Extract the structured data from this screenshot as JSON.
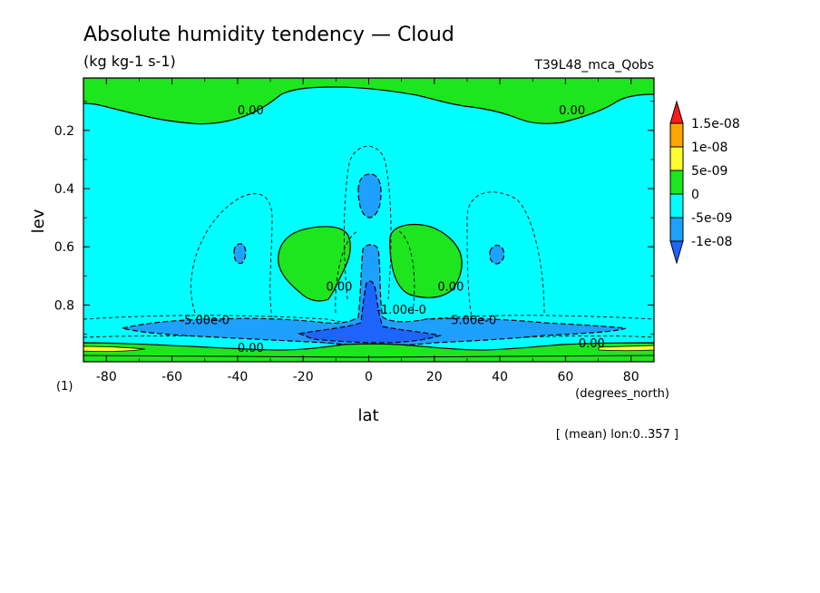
{
  "chart_data": {
    "type": "contour",
    "title": "Absolute humidity tendency — Cloud",
    "units": "(kg kg-1 s-1)",
    "run_label": "T39L48_mca_Qobs",
    "xlabel": "lat",
    "x_unit": "(degrees_north)",
    "ylabel": "lev",
    "y_unit": "(1)",
    "footer": "[ (mean) lon:0..357 ]",
    "xlim": [
      -87,
      87
    ],
    "ylim": [
      0.995,
      0.02
    ],
    "x_ticks": [
      -80,
      -60,
      -40,
      -20,
      0,
      20,
      40,
      60,
      80
    ],
    "y_ticks": [
      0.2,
      0.4,
      0.6,
      0.8
    ],
    "contour_labels": [
      {
        "text": "0.00",
        "lat": -36,
        "lev": 0.145
      },
      {
        "text": "0.00",
        "lat": 62,
        "lev": 0.145
      },
      {
        "text": "0.00",
        "lat": -9,
        "lev": 0.75
      },
      {
        "text": "0.00",
        "lat": 25,
        "lev": 0.75
      },
      {
        "text": "-1.00e-0",
        "lat": 10,
        "lev": 0.83
      },
      {
        "text": "-5.00e-0",
        "lat": -50,
        "lev": 0.865
      },
      {
        "text": "5.00e-0",
        "lat": 32,
        "lev": 0.865
      },
      {
        "text": "0.00",
        "lat": -36,
        "lev": 0.96
      },
      {
        "text": "0.00",
        "lat": 68,
        "lev": 0.945
      }
    ],
    "colorbar": {
      "labels": [
        "1.5e-08",
        "1e-08",
        "5e-09",
        "0",
        "-5e-09",
        "-1e-08"
      ],
      "colors": [
        "#ff1a1a",
        "#ffa500",
        "#ffff30",
        "#1ee61e",
        "#00ffff",
        "#1ea0ff",
        "#1e64ff"
      ]
    },
    "field_colors": {
      "positive_0_5e-09": "#1ee61e",
      "negative_-5e-09_0": "#00ffff",
      "negative_-1e-08_-5e-09": "#1ea0ff",
      "negative_below_-1e-08": "#1e64ff",
      "positive_5e-09_1e-08": "#ffff30"
    }
  }
}
